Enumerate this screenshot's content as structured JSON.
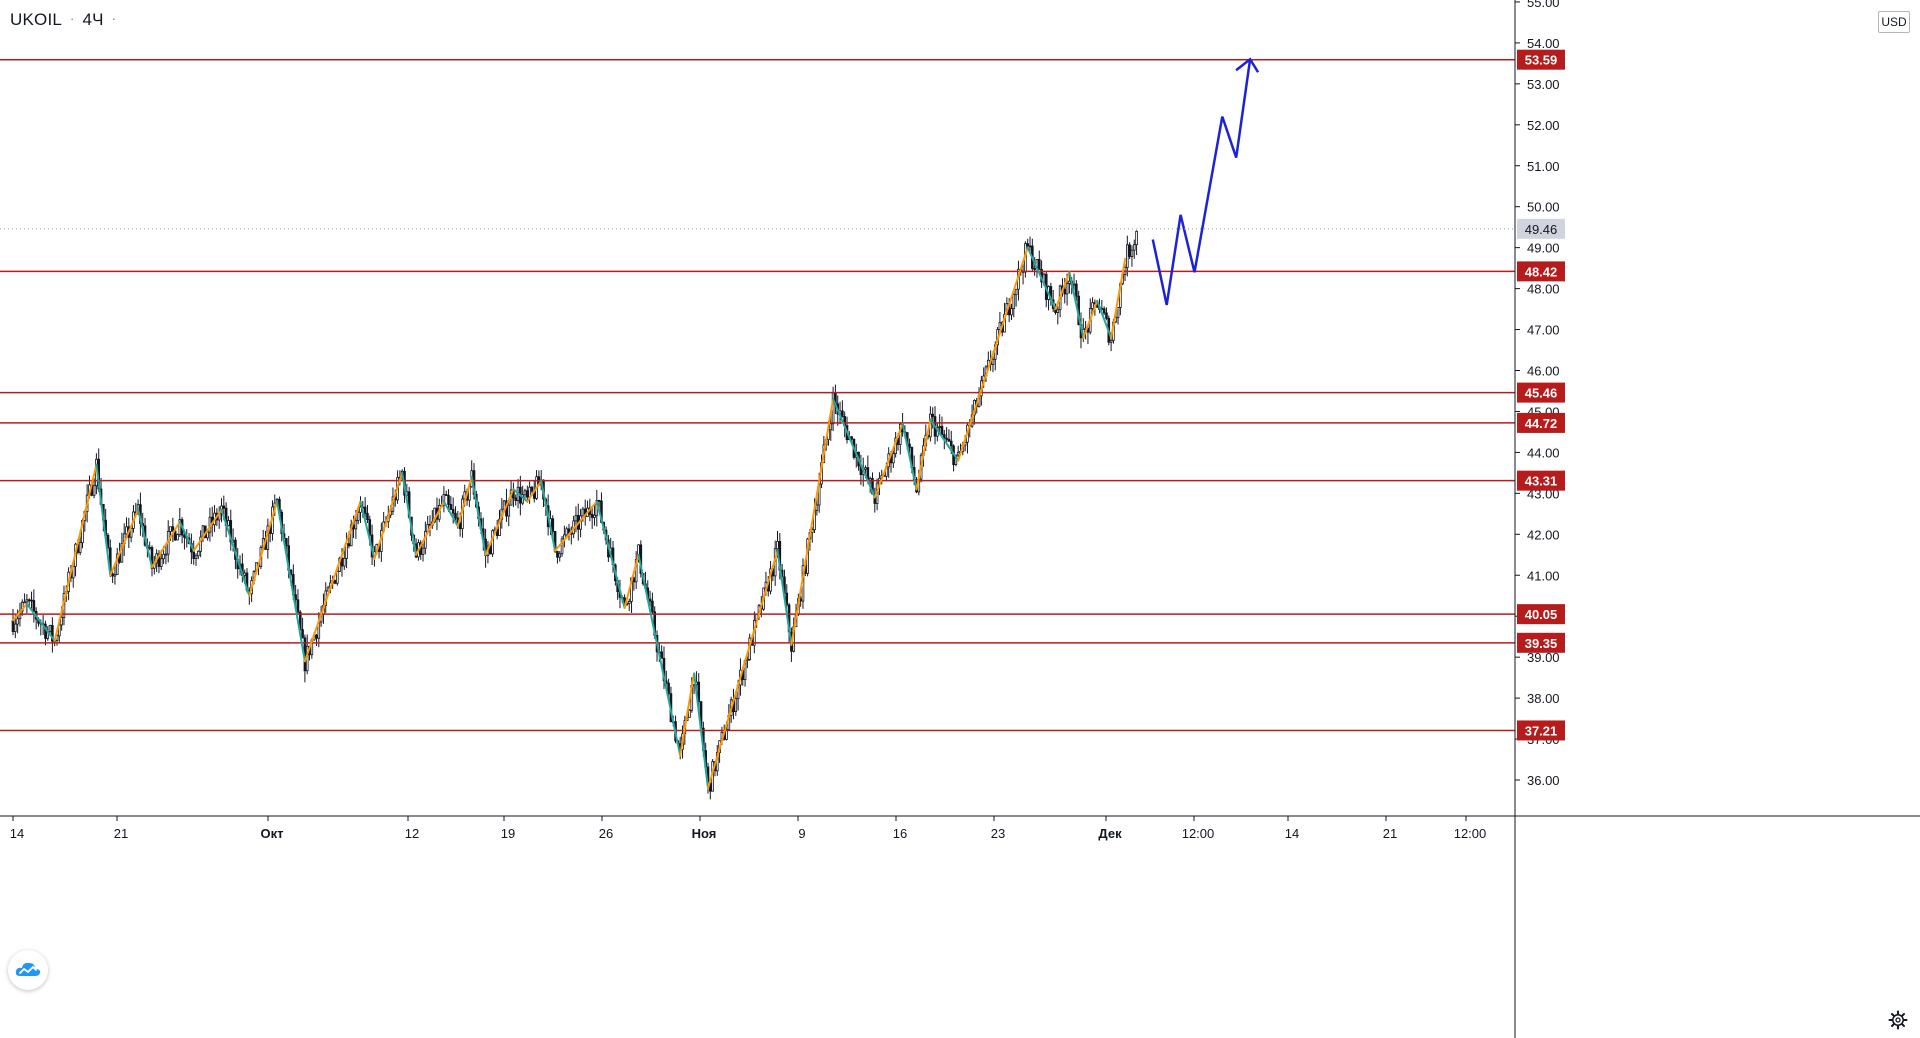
{
  "header": {
    "symbol": "UKOIL",
    "interval": "4Ч",
    "separator": "·"
  },
  "price_axis": {
    "currency": "USD"
  },
  "colors": {
    "up_wave": "#ff9800",
    "down_wave": "#26a69a",
    "level_line": "#b71c1c",
    "level_label_bg": "#b71c1c",
    "projection": "#1e22d6",
    "candle": "#131722",
    "current_price_bg": "#d1d4dc"
  },
  "icons": {
    "logo": "tradingview-cloud-icon",
    "settings": "gear-icon"
  },
  "chart_data": {
    "type": "candlestick",
    "title": "",
    "xlabel": "",
    "ylabel": "",
    "ylim": [
      35.3,
      55.0
    ],
    "grid": false,
    "y_ticks": [
      36,
      37,
      38,
      39,
      40,
      41,
      42,
      43,
      44,
      45,
      46,
      47,
      48,
      49,
      50,
      51,
      52,
      53,
      54,
      55
    ],
    "x_ticks": [
      "14",
      "21",
      "Окт",
      "12",
      "19",
      "26",
      "Ноя",
      "9",
      "16",
      "23",
      "Дек",
      "12:00",
      "14",
      "21",
      "12:00"
    ],
    "current_price": 49.46,
    "levels": [
      53.59,
      48.42,
      45.46,
      44.72,
      43.31,
      40.05,
      39.35,
      37.21
    ],
    "zigzag": [
      {
        "x": "2020-09-14",
        "y": 39.9
      },
      {
        "x": "2020-09-15",
        "y": 40.3
      },
      {
        "x": "2020-09-17",
        "y": 39.4
      },
      {
        "x": "2020-09-20",
        "y": 43.7
      },
      {
        "x": "2020-09-21",
        "y": 41.0
      },
      {
        "x": "2020-09-23",
        "y": 42.6
      },
      {
        "x": "2020-09-24",
        "y": 41.2
      },
      {
        "x": "2020-09-26",
        "y": 42.3
      },
      {
        "x": "2020-09-27",
        "y": 41.6
      },
      {
        "x": "2020-09-29",
        "y": 42.6
      },
      {
        "x": "2020-10-01",
        "y": 40.5
      },
      {
        "x": "2020-10-03",
        "y": 42.8
      },
      {
        "x": "2020-10-05",
        "y": 38.9
      },
      {
        "x": "2020-10-09",
        "y": 42.8
      },
      {
        "x": "2020-10-10",
        "y": 41.4
      },
      {
        "x": "2020-10-12",
        "y": 43.5
      },
      {
        "x": "2020-10-13",
        "y": 41.5
      },
      {
        "x": "2020-10-15",
        "y": 42.8
      },
      {
        "x": "2020-10-16",
        "y": 42.2
      },
      {
        "x": "2020-10-17",
        "y": 43.4
      },
      {
        "x": "2020-10-18",
        "y": 41.5
      },
      {
        "x": "2020-10-20",
        "y": 43.1
      },
      {
        "x": "2020-10-21",
        "y": 42.8
      },
      {
        "x": "2020-10-22",
        "y": 43.3
      },
      {
        "x": "2020-10-23",
        "y": 41.6
      },
      {
        "x": "2020-10-26",
        "y": 42.8
      },
      {
        "x": "2020-10-28",
        "y": 40.2
      },
      {
        "x": "2020-10-29",
        "y": 41.5
      },
      {
        "x": "2020-11-01",
        "y": 36.6
      },
      {
        "x": "2020-11-02",
        "y": 38.6
      },
      {
        "x": "2020-11-03",
        "y": 35.8
      },
      {
        "x": "2020-11-08",
        "y": 41.6
      },
      {
        "x": "2020-11-09",
        "y": 39.3
      },
      {
        "x": "2020-11-12",
        "y": 45.3
      },
      {
        "x": "2020-11-15",
        "y": 42.9
      },
      {
        "x": "2020-11-17",
        "y": 44.7
      },
      {
        "x": "2020-11-18",
        "y": 43.1
      },
      {
        "x": "2020-11-19",
        "y": 44.8
      },
      {
        "x": "2020-11-21",
        "y": 43.8
      },
      {
        "x": "2020-11-26",
        "y": 49.0
      },
      {
        "x": "2020-11-28",
        "y": 47.5
      },
      {
        "x": "2020-11-29",
        "y": 48.4
      },
      {
        "x": "2020-11-30",
        "y": 46.8
      },
      {
        "x": "2020-12-01",
        "y": 47.7
      },
      {
        "x": "2020-12-02",
        "y": 46.8
      },
      {
        "x": "2020-12-03",
        "y": 48.7
      }
    ],
    "projection": [
      {
        "x": "2020-12-05",
        "y": 49.2
      },
      {
        "x": "2020-12-06",
        "y": 47.6
      },
      {
        "x": "2020-12-07",
        "y": 49.8
      },
      {
        "x": "2020-12-08",
        "y": 48.4
      },
      {
        "x": "2020-12-10",
        "y": 52.2
      },
      {
        "x": "2020-12-11",
        "y": 51.2
      },
      {
        "x": "2020-12-12",
        "y": 53.6
      }
    ]
  }
}
